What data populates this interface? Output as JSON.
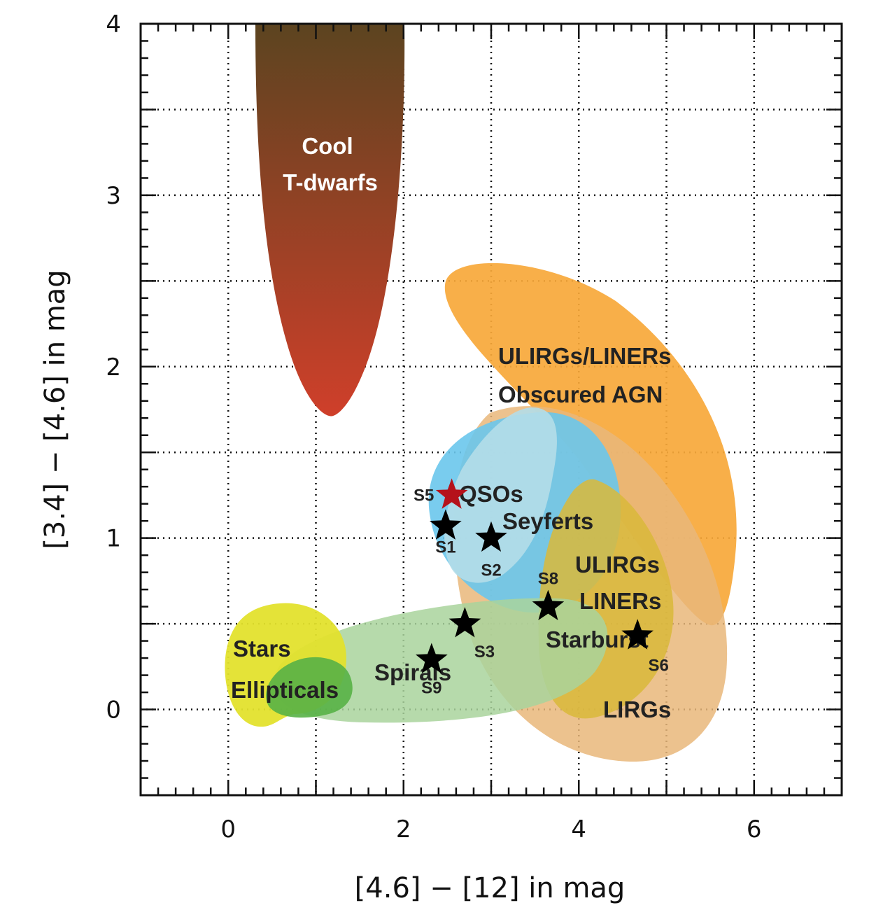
{
  "chart_data": {
    "type": "scatter",
    "xlabel": "[4.6] − [12] in mag",
    "ylabel": "[3.4] − [4.6] in mag",
    "xlim": [
      -1,
      7
    ],
    "ylim": [
      -0.5,
      4
    ],
    "x_ticks": [
      0,
      2,
      4,
      6
    ],
    "y_ticks": [
      0,
      1,
      2,
      3,
      4
    ],
    "x_tick_labels": [
      "0",
      "2",
      "4",
      "6"
    ],
    "y_tick_labels": [
      "0",
      "1",
      "2",
      "3",
      "4"
    ],
    "grid": true,
    "regions": [
      {
        "name": "ULIRGs/LINERs Obscured AGN",
        "lines": [
          "ULIRGs/LINERs",
          "Obscured AGN"
        ],
        "color": "#f7a83a"
      },
      {
        "name": "LIRGs",
        "lines": [
          "LIRGs"
        ],
        "color": "#e9b77a"
      },
      {
        "name": "QSOs",
        "lines": [
          "QSOs"
        ],
        "color": "#6ac6ec"
      },
      {
        "name": "Seyferts",
        "lines": [
          "Seyferts"
        ],
        "color": "#b4dde8"
      },
      {
        "name": "ULIRGs LINERs Starburst",
        "lines": [
          "ULIRGs",
          "LINERs",
          "Starburst"
        ],
        "color": "#d9b93a"
      },
      {
        "name": "Stars",
        "lines": [
          "Stars"
        ],
        "color": "#e3e22d"
      },
      {
        "name": "Ellipticals",
        "lines": [
          "Ellipticals"
        ],
        "color": "#58b146"
      },
      {
        "name": "Spirals",
        "lines": [
          "Spirals"
        ],
        "color": "#a9d49c"
      },
      {
        "name": "Cool T-dwarfs",
        "lines": [
          "Cool",
          "T-dwarfs"
        ],
        "color_top": "#5c4420",
        "color_bottom": "#cf3f2a"
      }
    ],
    "points": [
      {
        "label": "S5",
        "x": 2.55,
        "y": 1.25,
        "color": "#b5121b"
      },
      {
        "label": "S1",
        "x": 2.48,
        "y": 1.07,
        "color": "#000000"
      },
      {
        "label": "S2",
        "x": 3.0,
        "y": 1.0,
        "color": "#000000"
      },
      {
        "label": "S8",
        "x": 3.65,
        "y": 0.6,
        "color": "#000000"
      },
      {
        "label": "S3",
        "x": 2.7,
        "y": 0.5,
        "color": "#000000"
      },
      {
        "label": "S6",
        "x": 4.67,
        "y": 0.43,
        "color": "#000000"
      },
      {
        "label": "S9",
        "x": 2.32,
        "y": 0.29,
        "color": "#000000"
      }
    ]
  }
}
